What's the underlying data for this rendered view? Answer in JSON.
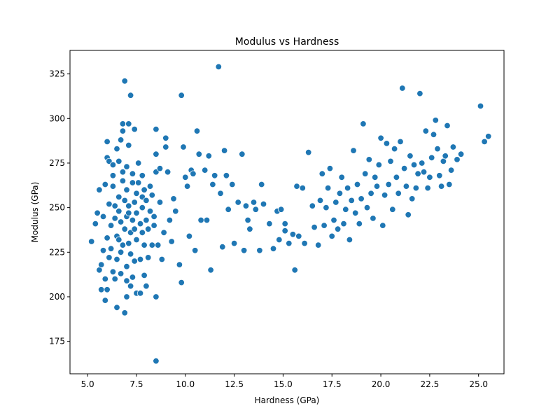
{
  "chart_data": {
    "type": "scatter",
    "title": "Modulus vs Hardness",
    "xlabel": "Hardness (GPa)",
    "ylabel": "Modulus (GPa)",
    "xlim": [
      4.1,
      26.3
    ],
    "ylim": [
      156.8,
      338.2
    ],
    "xticks": [
      5.0,
      7.5,
      10.0,
      12.5,
      15.0,
      17.5,
      20.0,
      22.5,
      25.0
    ],
    "xtick_labels": [
      "5.0",
      "7.5",
      "10.0",
      "12.5",
      "15.0",
      "17.5",
      "20.0",
      "22.5",
      "25.0"
    ],
    "yticks": [
      175,
      200,
      225,
      250,
      275,
      300,
      325
    ],
    "ytick_labels": [
      "175",
      "200",
      "225",
      "250",
      "275",
      "300",
      "325"
    ],
    "grid": false,
    "legend": "none",
    "colors": {
      "points": "#1f77b4",
      "point_edge": "#ffffff",
      "axes": "#000000"
    },
    "points": [
      [
        5.2,
        231
      ],
      [
        5.4,
        241
      ],
      [
        5.5,
        247
      ],
      [
        5.6,
        260
      ],
      [
        5.6,
        215
      ],
      [
        5.7,
        218
      ],
      [
        5.7,
        204
      ],
      [
        5.8,
        226
      ],
      [
        5.8,
        245
      ],
      [
        5.9,
        198
      ],
      [
        5.9,
        210
      ],
      [
        5.9,
        263
      ],
      [
        6.0,
        278
      ],
      [
        6.0,
        287
      ],
      [
        6.0,
        233
      ],
      [
        6.0,
        204
      ],
      [
        6.1,
        252
      ],
      [
        6.1,
        276
      ],
      [
        6.1,
        222
      ],
      [
        6.2,
        240
      ],
      [
        6.2,
        227
      ],
      [
        6.3,
        214
      ],
      [
        6.3,
        262
      ],
      [
        6.3,
        268
      ],
      [
        6.3,
        274
      ],
      [
        6.4,
        210
      ],
      [
        6.4,
        244
      ],
      [
        6.4,
        251
      ],
      [
        6.5,
        234
      ],
      [
        6.5,
        221
      ],
      [
        6.5,
        194
      ],
      [
        6.5,
        283
      ],
      [
        6.6,
        232
      ],
      [
        6.6,
        276
      ],
      [
        6.6,
        256
      ],
      [
        6.6,
        248
      ],
      [
        6.7,
        225
      ],
      [
        6.7,
        213
      ],
      [
        6.7,
        242
      ],
      [
        6.7,
        288
      ],
      [
        6.8,
        293
      ],
      [
        6.8,
        297
      ],
      [
        6.8,
        265
      ],
      [
        6.8,
        270
      ],
      [
        6.8,
        229
      ],
      [
        6.9,
        321
      ],
      [
        6.9,
        191
      ],
      [
        6.9,
        238
      ],
      [
        6.9,
        254
      ],
      [
        7.0,
        209
      ],
      [
        7.0,
        245
      ],
      [
        7.0,
        260
      ],
      [
        7.0,
        273
      ],
      [
        7.0,
        217
      ],
      [
        7.0,
        200
      ],
      [
        7.1,
        230
      ],
      [
        7.1,
        247
      ],
      [
        7.1,
        251
      ],
      [
        7.1,
        297
      ],
      [
        7.1,
        285
      ],
      [
        7.2,
        313
      ],
      [
        7.2,
        236
      ],
      [
        7.2,
        224
      ],
      [
        7.2,
        206
      ],
      [
        7.3,
        264
      ],
      [
        7.3,
        243
      ],
      [
        7.3,
        269
      ],
      [
        7.3,
        211
      ],
      [
        7.4,
        294
      ],
      [
        7.4,
        253
      ],
      [
        7.4,
        238
      ],
      [
        7.4,
        220
      ],
      [
        7.5,
        202
      ],
      [
        7.5,
        258
      ],
      [
        7.5,
        247
      ],
      [
        7.5,
        232
      ],
      [
        7.6,
        275
      ],
      [
        7.6,
        264
      ],
      [
        7.7,
        241
      ],
      [
        7.7,
        221
      ],
      [
        7.7,
        202
      ],
      [
        7.8,
        256
      ],
      [
        7.8,
        250
      ],
      [
        7.8,
        236
      ],
      [
        7.8,
        268
      ],
      [
        7.9,
        229
      ],
      [
        7.9,
        212
      ],
      [
        7.9,
        260
      ],
      [
        8.0,
        243
      ],
      [
        8.0,
        254
      ],
      [
        8.0,
        206
      ],
      [
        8.1,
        222
      ],
      [
        8.1,
        238
      ],
      [
        8.2,
        262
      ],
      [
        8.2,
        248
      ],
      [
        8.3,
        229
      ],
      [
        8.3,
        257
      ],
      [
        8.4,
        245
      ],
      [
        8.4,
        240
      ],
      [
        8.5,
        280
      ],
      [
        8.5,
        270
      ],
      [
        8.5,
        294
      ],
      [
        8.5,
        200
      ],
      [
        8.5,
        164
      ],
      [
        8.6,
        229
      ],
      [
        8.7,
        272
      ],
      [
        8.7,
        253
      ],
      [
        8.8,
        221
      ],
      [
        8.9,
        236
      ],
      [
        9.0,
        284
      ],
      [
        9.0,
        289
      ],
      [
        9.1,
        270
      ],
      [
        9.2,
        243
      ],
      [
        9.3,
        231
      ],
      [
        9.4,
        255
      ],
      [
        9.5,
        248
      ],
      [
        9.7,
        218
      ],
      [
        9.8,
        313
      ],
      [
        9.8,
        208
      ],
      [
        9.9,
        284
      ],
      [
        10.0,
        267
      ],
      [
        10.1,
        262
      ],
      [
        10.2,
        234
      ],
      [
        10.3,
        271
      ],
      [
        10.4,
        269
      ],
      [
        10.5,
        226
      ],
      [
        10.6,
        293
      ],
      [
        10.7,
        280
      ],
      [
        10.8,
        243
      ],
      [
        11.0,
        271
      ],
      [
        11.1,
        243
      ],
      [
        11.2,
        279
      ],
      [
        11.3,
        215
      ],
      [
        11.4,
        263
      ],
      [
        11.5,
        268
      ],
      [
        11.7,
        329
      ],
      [
        11.8,
        258
      ],
      [
        11.9,
        228
      ],
      [
        12.0,
        282
      ],
      [
        12.1,
        268
      ],
      [
        12.2,
        249
      ],
      [
        12.4,
        263
      ],
      [
        12.5,
        230
      ],
      [
        12.7,
        253
      ],
      [
        12.9,
        280
      ],
      [
        13.0,
        226
      ],
      [
        13.1,
        251
      ],
      [
        13.2,
        243
      ],
      [
        13.3,
        238
      ],
      [
        13.5,
        253
      ],
      [
        13.6,
        249
      ],
      [
        13.8,
        226
      ],
      [
        13.9,
        263
      ],
      [
        14.0,
        252
      ],
      [
        14.3,
        241
      ],
      [
        14.5,
        227
      ],
      [
        14.7,
        248
      ],
      [
        14.8,
        232
      ],
      [
        14.9,
        249
      ],
      [
        15.1,
        241
      ],
      [
        15.1,
        237
      ],
      [
        15.3,
        230
      ],
      [
        15.5,
        235
      ],
      [
        15.6,
        215
      ],
      [
        15.7,
        262
      ],
      [
        15.8,
        234
      ],
      [
        16.0,
        261
      ],
      [
        16.1,
        230
      ],
      [
        16.3,
        281
      ],
      [
        16.5,
        251
      ],
      [
        16.6,
        239
      ],
      [
        16.8,
        229
      ],
      [
        16.9,
        254
      ],
      [
        17.0,
        269
      ],
      [
        17.1,
        240
      ],
      [
        17.2,
        250
      ],
      [
        17.3,
        261
      ],
      [
        17.4,
        272
      ],
      [
        17.5,
        234
      ],
      [
        17.6,
        243
      ],
      [
        17.7,
        253
      ],
      [
        17.8,
        238
      ],
      [
        17.9,
        258
      ],
      [
        18.0,
        267
      ],
      [
        18.1,
        241
      ],
      [
        18.2,
        249
      ],
      [
        18.3,
        261
      ],
      [
        18.4,
        232
      ],
      [
        18.5,
        254
      ],
      [
        18.6,
        282
      ],
      [
        18.7,
        247
      ],
      [
        18.8,
        263
      ],
      [
        18.9,
        241
      ],
      [
        19.0,
        255
      ],
      [
        19.1,
        297
      ],
      [
        19.2,
        269
      ],
      [
        19.3,
        250
      ],
      [
        19.4,
        277
      ],
      [
        19.5,
        258
      ],
      [
        19.6,
        244
      ],
      [
        19.7,
        267
      ],
      [
        19.8,
        262
      ],
      [
        19.9,
        274
      ],
      [
        20.0,
        289
      ],
      [
        20.1,
        240
      ],
      [
        20.2,
        257
      ],
      [
        20.3,
        286
      ],
      [
        20.4,
        263
      ],
      [
        20.5,
        276
      ],
      [
        20.6,
        249
      ],
      [
        20.7,
        283
      ],
      [
        20.8,
        267
      ],
      [
        20.9,
        258
      ],
      [
        21.0,
        287
      ],
      [
        21.1,
        317
      ],
      [
        21.2,
        272
      ],
      [
        21.3,
        262
      ],
      [
        21.4,
        246
      ],
      [
        21.5,
        279
      ],
      [
        21.6,
        255
      ],
      [
        21.7,
        274
      ],
      [
        21.8,
        261
      ],
      [
        21.9,
        269
      ],
      [
        22.0,
        314
      ],
      [
        22.1,
        275
      ],
      [
        22.2,
        270
      ],
      [
        22.3,
        293
      ],
      [
        22.4,
        261
      ],
      [
        22.5,
        267
      ],
      [
        22.6,
        278
      ],
      [
        22.7,
        291
      ],
      [
        22.8,
        299
      ],
      [
        22.9,
        283
      ],
      [
        23.0,
        268
      ],
      [
        23.1,
        262
      ],
      [
        23.2,
        276
      ],
      [
        23.3,
        279
      ],
      [
        23.4,
        296
      ],
      [
        23.5,
        263
      ],
      [
        23.6,
        271
      ],
      [
        23.7,
        284
      ],
      [
        23.9,
        277
      ],
      [
        24.1,
        280
      ],
      [
        25.1,
        307
      ],
      [
        25.3,
        287
      ],
      [
        25.5,
        290
      ]
    ]
  }
}
